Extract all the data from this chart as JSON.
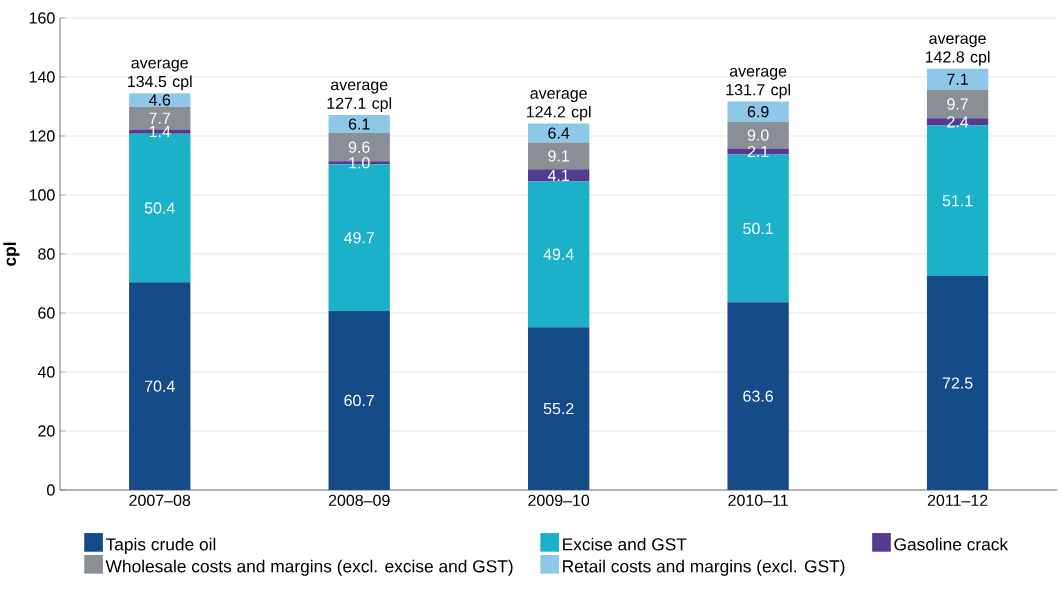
{
  "chart_data": {
    "type": "bar",
    "stacked": true,
    "ylabel": "cpl",
    "categories": [
      "2007–08",
      "2008–09",
      "2009–10",
      "2010–11",
      "2011–12"
    ],
    "series": [
      {
        "name": "Tapis crude oil",
        "color": "#164b89",
        "values": [
          70.4,
          60.7,
          55.2,
          63.6,
          72.5
        ],
        "value_labels": [
          "70.4",
          "60.7",
          "55.2",
          "63.6",
          "72.5"
        ]
      },
      {
        "name": "Excise and GST",
        "color": "#1bb2c9",
        "values": [
          50.4,
          49.7,
          49.4,
          50.1,
          51.1
        ],
        "value_labels": [
          "50.4",
          "49.7",
          "49.4",
          "50.1",
          "51.1"
        ]
      },
      {
        "name": "Gasoline crack",
        "color": "#553b8f",
        "values": [
          1.4,
          1.0,
          4.1,
          2.1,
          2.4
        ],
        "value_labels": [
          "1.4",
          "1.0",
          "4.1",
          "2.1",
          "2.4"
        ]
      },
      {
        "name": "Wholesale costs and margins (excl. excise and GST)",
        "color": "#8a8f96",
        "values": [
          7.7,
          9.6,
          9.1,
          9.0,
          9.7
        ],
        "value_labels": [
          "7.7",
          "9.6",
          "9.1",
          "9.0",
          "9.7"
        ]
      },
      {
        "name": "Retail costs and margins (excl. GST)",
        "color": "#8ec8e9",
        "values": [
          4.6,
          6.1,
          6.4,
          6.9,
          7.1
        ],
        "value_labels": [
          "4.6",
          "6.1",
          "6.4",
          "6.9",
          "7.1"
        ]
      }
    ],
    "ylim": [
      0,
      160
    ],
    "yticks": [
      0,
      20,
      40,
      60,
      80,
      100,
      120,
      140,
      160
    ],
    "grid": "y",
    "legend": "bottom",
    "annotations": [
      {
        "text": "average 134.5 cpl",
        "x": "2007–08",
        "y": 134.5
      },
      {
        "text": "average 127.1 cpl",
        "x": "2008–09",
        "y": 127.1
      },
      {
        "text": "average 124.2 cpl",
        "x": "2009–10",
        "y": 124.2
      },
      {
        "text": "average 131.7 cpl",
        "x": "2010–11",
        "y": 131.7
      },
      {
        "text": "average 142.8 cpl",
        "x": "2011–12",
        "y": 142.8
      }
    ]
  }
}
